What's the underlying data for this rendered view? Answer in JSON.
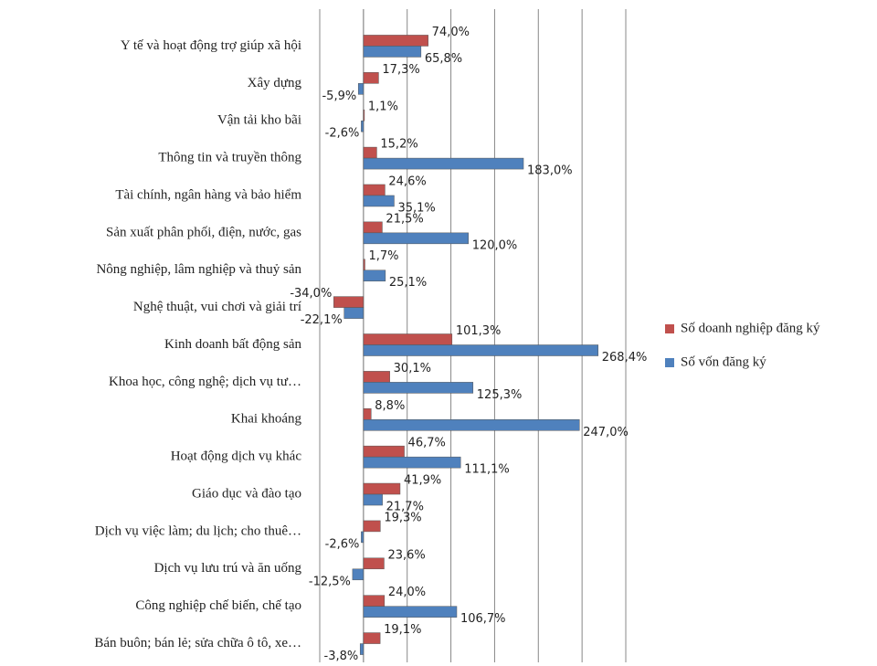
{
  "chart_data": {
    "type": "bar",
    "orientation": "horizontal",
    "categories": [
      "Y tế và hoạt động trợ giúp xã hội",
      "Xây dựng",
      "Vận tải kho bãi",
      "Thông tin và truyền thông",
      "Tài chính, ngân hàng và bảo hiểm",
      "Sản xuất phân phối, điện, nước, gas",
      "Nông nghiệp, lâm nghiệp và thuỷ sản",
      "Nghệ thuật, vui chơi và giải trí",
      "Kinh doanh bất động sản",
      "Khoa học, công nghệ; dịch vụ tư…",
      "Khai khoáng",
      "Hoạt động dịch vụ khác",
      "Giáo dục và đào tạo",
      "Dịch vụ việc làm; du lịch; cho thuê…",
      "Dịch vụ lưu trú và ăn uống",
      "Công nghiệp chế biến, chế tạo",
      "Bán buôn; bán lẻ; sửa chữa ô tô, xe…"
    ],
    "series": [
      {
        "name": "Số doanh nghiệp đăng ký",
        "color": "#c0504d",
        "values": [
          74.0,
          17.3,
          1.1,
          15.2,
          24.6,
          21.5,
          1.7,
          -34.0,
          101.3,
          30.1,
          8.8,
          46.7,
          41.9,
          19.3,
          23.6,
          24.0,
          19.1
        ],
        "value_labels": [
          "74,0%",
          "17,3%",
          "1,1%",
          "15,2%",
          "24,6%",
          "21,5%",
          "1,7%",
          "-34,0%",
          "101,3%",
          "30,1%",
          "8,8%",
          "46,7%",
          "41,9%",
          "19,3%",
          "23,6%",
          "24,0%",
          "19,1%"
        ]
      },
      {
        "name": "Số vốn đăng ký",
        "color": "#4f81bd",
        "values": [
          65.8,
          -5.9,
          -2.6,
          183.0,
          35.1,
          120.0,
          25.1,
          -22.1,
          268.4,
          125.3,
          247.0,
          111.1,
          21.7,
          -2.6,
          -12.5,
          106.7,
          -3.8
        ],
        "value_labels": [
          "65,8%",
          "-5,9%",
          "-2,6%",
          "183,0%",
          "35,1%",
          "120,0%",
          "25,1%",
          "-22,1%",
          "268,4%",
          "125,3%",
          "247,0%",
          "111,1%",
          "21,7%",
          "-2,6%",
          "-12,5%",
          "106,7%",
          "-3,8%"
        ]
      }
    ],
    "xlim": [
      -50,
      300
    ],
    "xticks": [
      -50,
      0,
      50,
      100,
      150,
      200,
      250,
      300
    ],
    "grid": true,
    "legend": "right"
  }
}
